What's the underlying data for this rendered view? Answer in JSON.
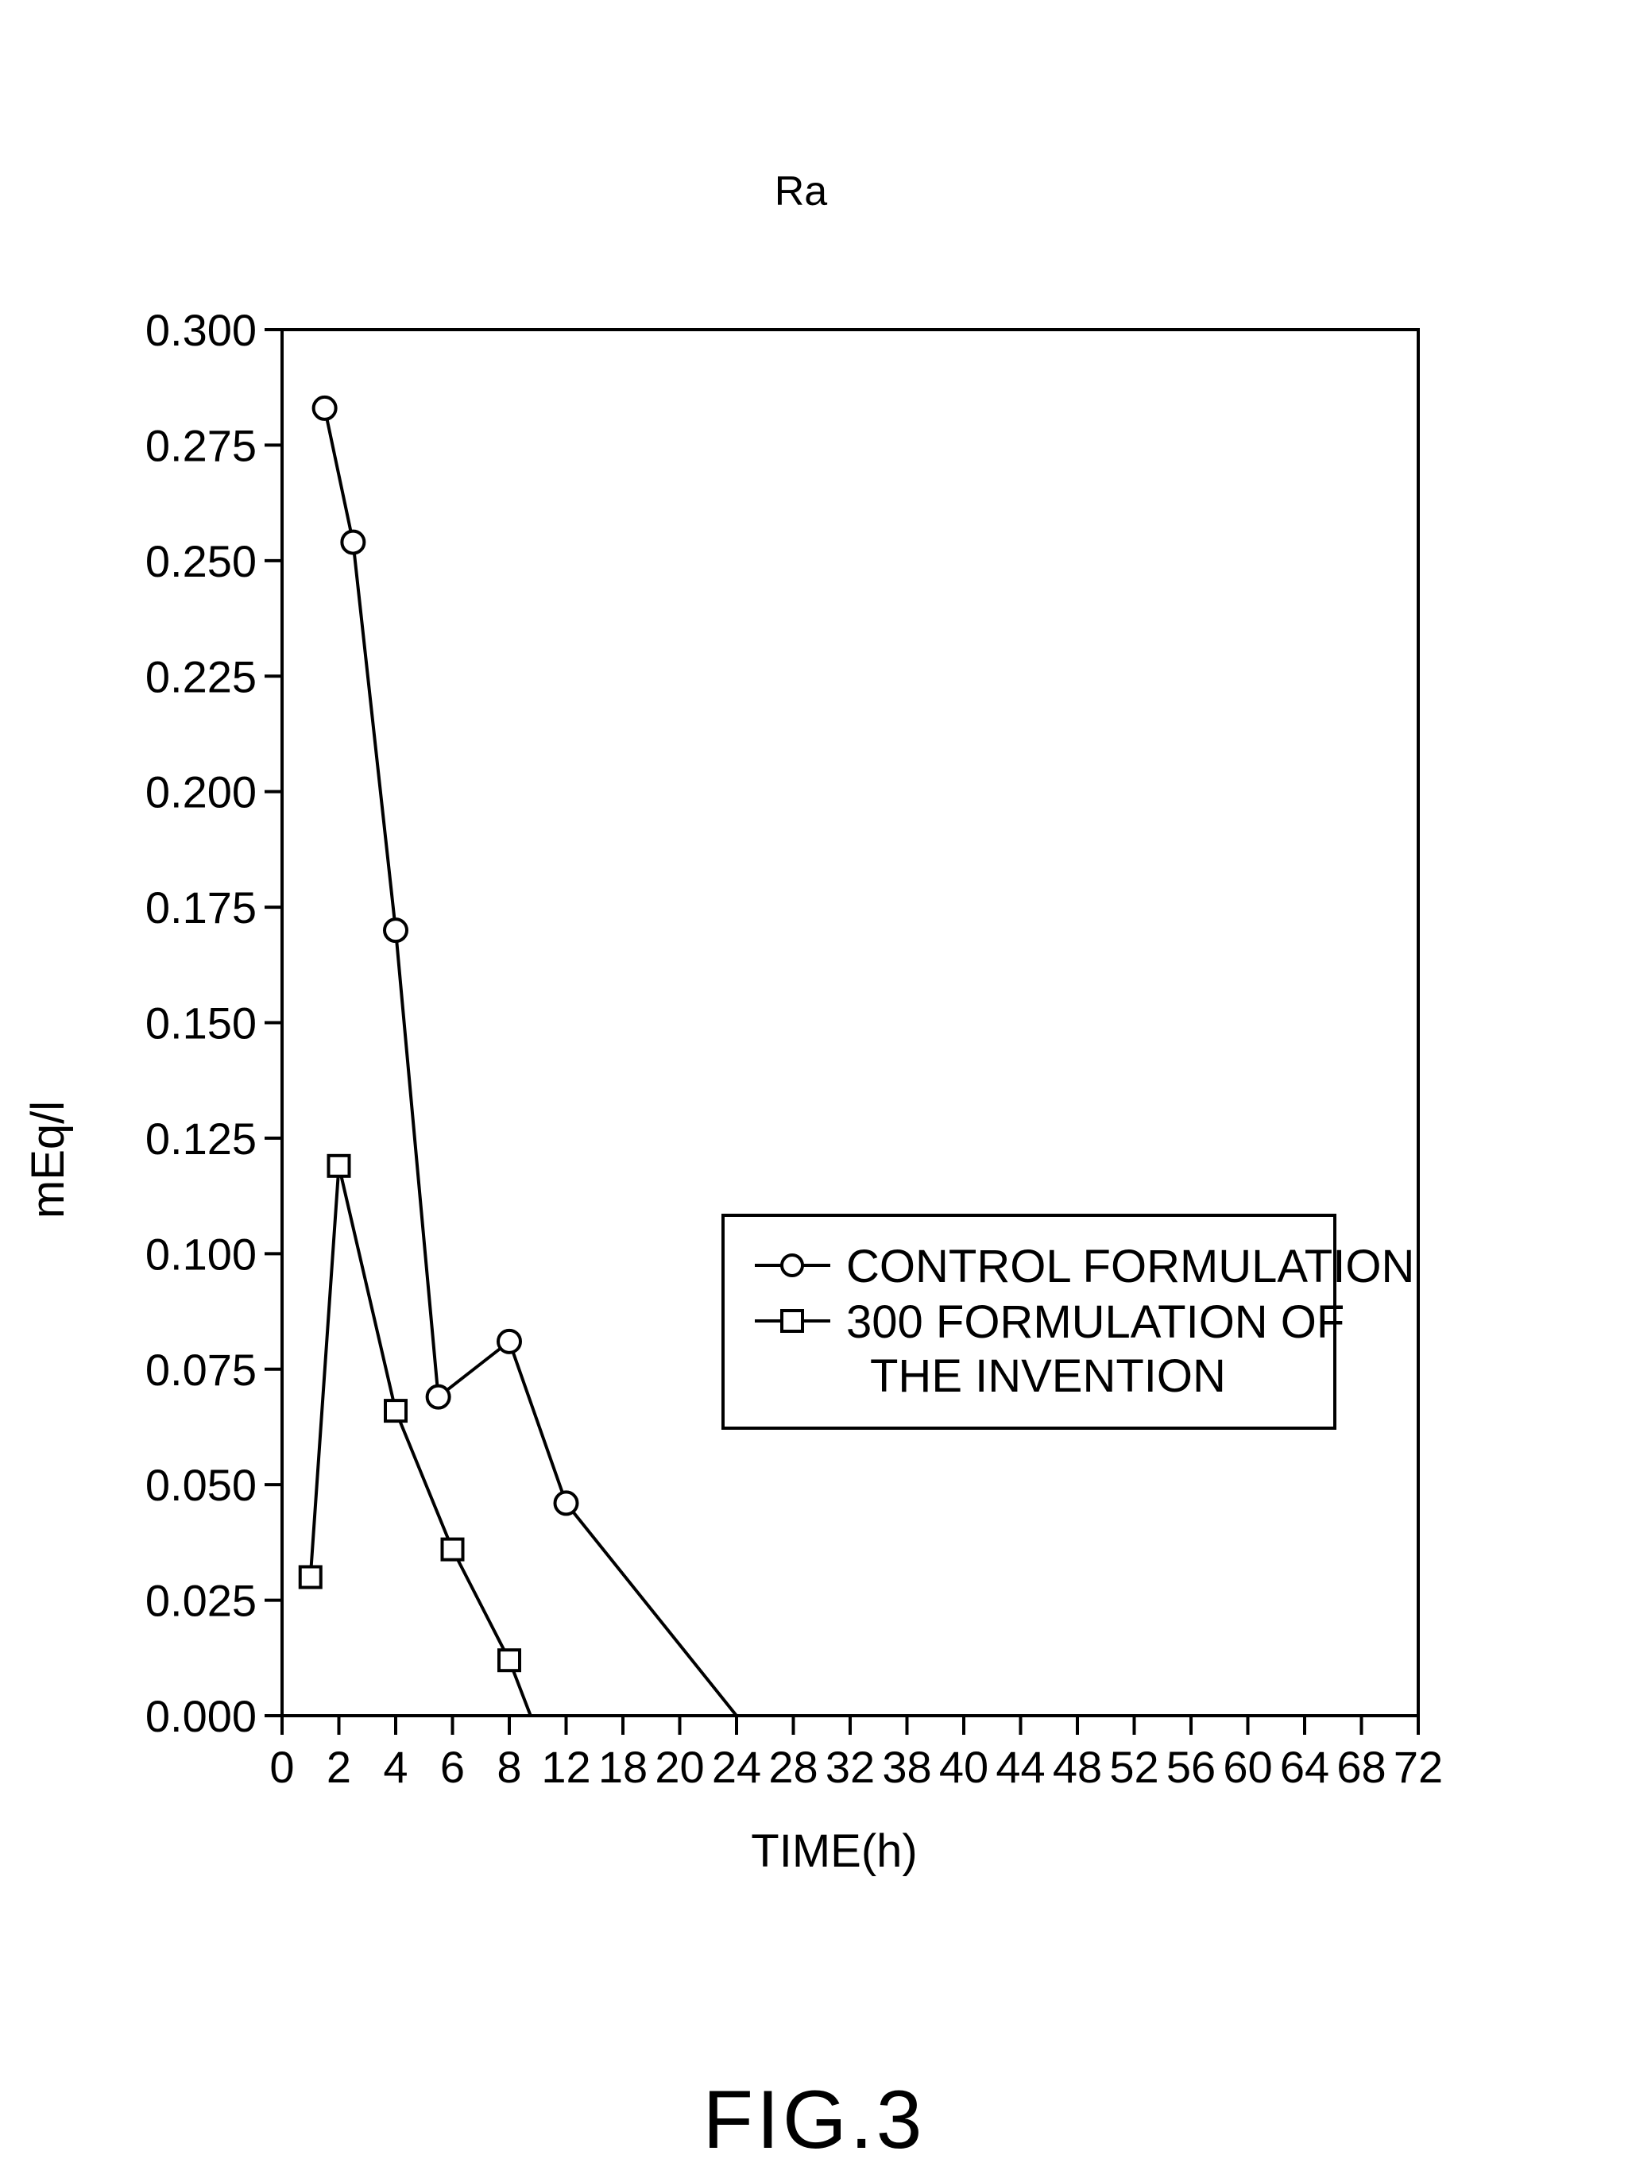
{
  "figure": {
    "caption": "FIG.3"
  },
  "chart_data": {
    "type": "line",
    "title": "Ra",
    "xlabel": "TIME(h)",
    "ylabel": "mEq/l",
    "x_tick_labels": [
      "0",
      "2",
      "4",
      "6",
      "8",
      "12",
      "18",
      "20",
      "24",
      "28",
      "32",
      "38",
      "40",
      "44",
      "48",
      "52",
      "56",
      "60",
      "64",
      "68",
      "72"
    ],
    "y_tick_labels": [
      "0.000",
      "0.025",
      "0.050",
      "0.075",
      "0.100",
      "0.125",
      "0.150",
      "0.175",
      "0.200",
      "0.225",
      "0.250",
      "0.275",
      "0.300"
    ],
    "ylim": [
      0,
      0.3
    ],
    "grid": false,
    "legend_position": "center-right",
    "legend": {
      "lines": [
        "CONTROL FORMULATION",
        "300 FORMULATION OF",
        "THE INVENTION"
      ]
    },
    "series": [
      {
        "name": "CONTROL FORMULATION",
        "marker": "circle",
        "x": [
          1.5,
          2.5,
          4,
          5.5,
          8,
          12,
          24
        ],
        "y": [
          0.283,
          0.254,
          0.17,
          0.069,
          0.081,
          0.046,
          0.0
        ]
      },
      {
        "name": "300 FORMULATION OF THE INVENTION",
        "marker": "square",
        "x": [
          1,
          2,
          4,
          6,
          8,
          9.5
        ],
        "y": [
          0.03,
          0.119,
          0.066,
          0.036,
          0.012,
          0.0
        ]
      }
    ]
  }
}
